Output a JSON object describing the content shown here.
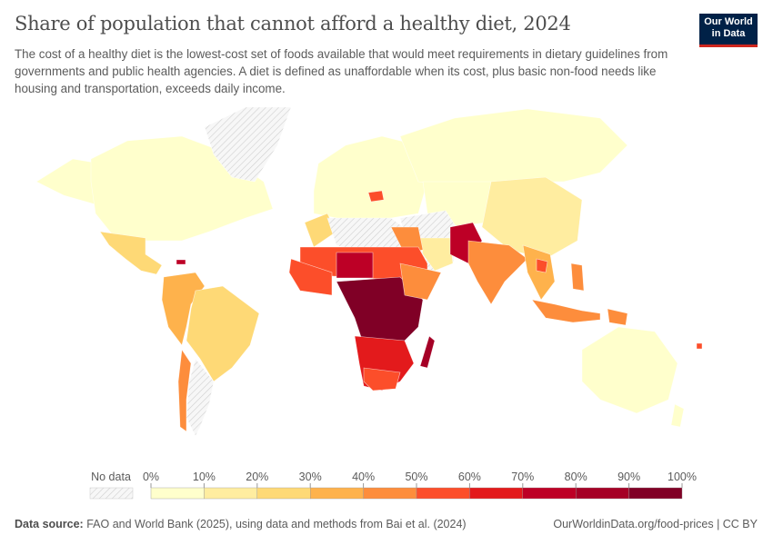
{
  "title": "Share of population that cannot afford a healthy diet, 2024",
  "subtitle": "The cost of a healthy diet is the lowest-cost set of foods available that would meet requirements in dietary guidelines from governments and public health agencies. A diet is defined as unaffordable when its cost, plus basic non-food needs like housing and transportation, exceeds daily income.",
  "logo": {
    "line1": "Our World",
    "line2": "in Data",
    "bg": "#002147",
    "accent": "#ce261e"
  },
  "legend": {
    "no_data_label": "No data",
    "ticks": [
      "0%",
      "10%",
      "20%",
      "30%",
      "40%",
      "50%",
      "60%",
      "70%",
      "80%",
      "90%",
      "100%"
    ],
    "colors": [
      "#ffffcc",
      "#ffeda0",
      "#fed976",
      "#feb24c",
      "#fd8d3c",
      "#fc4e2a",
      "#e31a1c",
      "#bd0026",
      "#a50026",
      "#800026"
    ]
  },
  "footer": {
    "source_label": "Data source:",
    "source_text": "FAO and World Bank (2025), using data and methods from Bai et al. (2024)",
    "url": "OurWorldinData.org/food-prices | CC BY"
  }
}
